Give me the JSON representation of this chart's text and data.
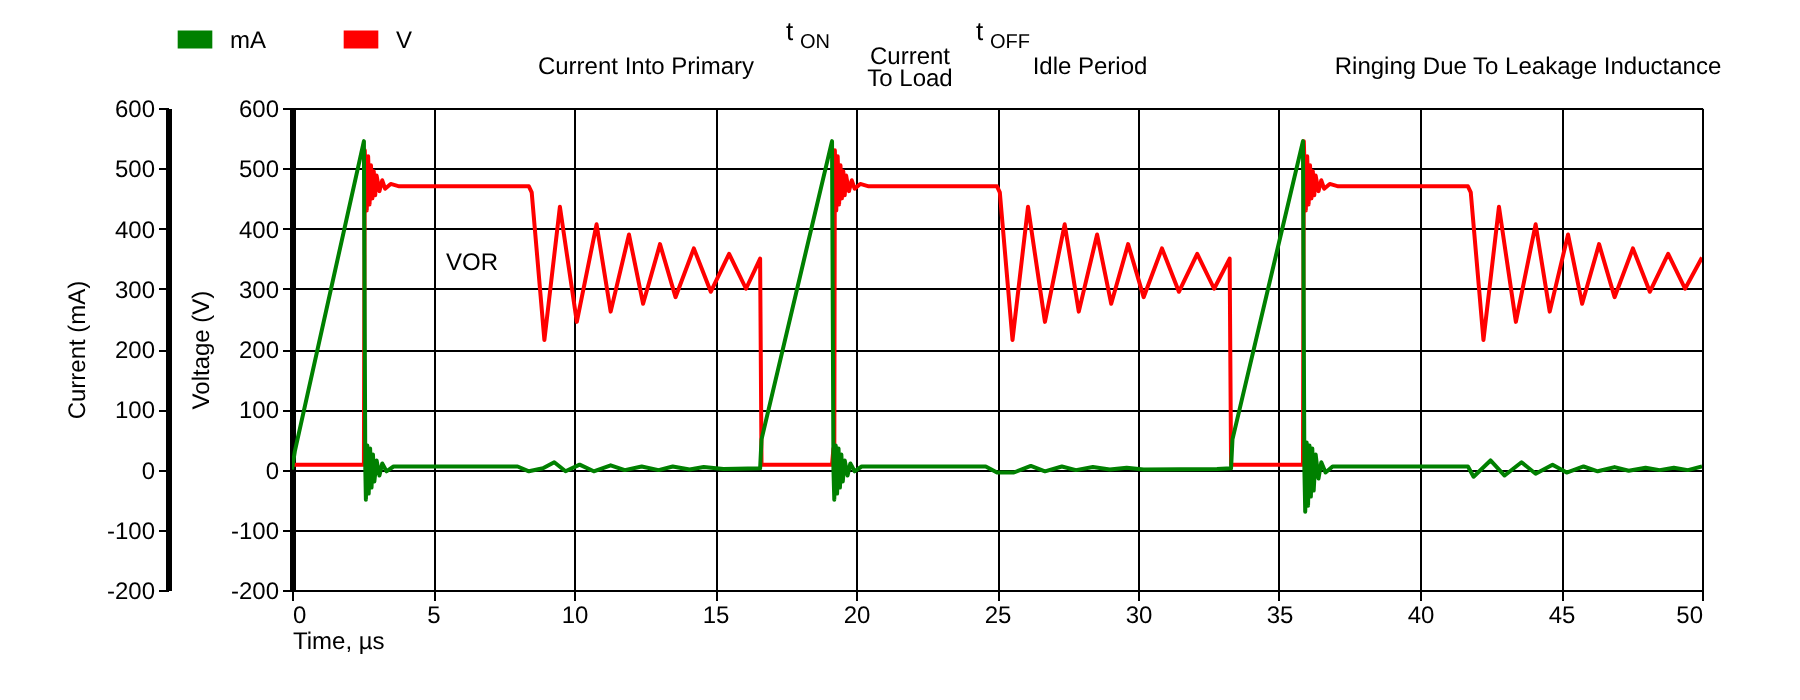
{
  "chart_data": {
    "type": "line",
    "xlabel": "Time, µs",
    "ylabel": "Current (mA)",
    "y2label": "Voltage (V)",
    "xlim": [
      0,
      50
    ],
    "xticks": [
      0,
      5,
      10,
      15,
      20,
      25,
      30,
      35,
      40,
      45,
      50
    ],
    "ylim": [
      -200,
      600
    ],
    "yticks": [
      -200,
      -100,
      0,
      100,
      200,
      300,
      400,
      500,
      600
    ],
    "y2lim": [
      -200,
      600
    ],
    "y2ticks": [
      -200,
      -100,
      0,
      100,
      200,
      300,
      400,
      500,
      600
    ],
    "grid": true,
    "legend": "top left",
    "line_style": "solid",
    "marker": "none",
    "annotations": [
      "Current Into Primary",
      "t$_{ON}$",
      "t$_{OFF}$",
      "Current\nTo Load",
      "Idle Period",
      "Ringing Due To Leakage Inductance",
      "VOR"
    ],
    "series": [
      {
        "name": "mA",
        "color": "#008000",
        "axis": "y",
        "x": [
          0,
          0.1,
          2.55,
          2.6,
          2.62,
          2.67,
          2.72,
          2.77,
          2.82,
          2.87,
          2.92,
          3.0,
          3.1,
          3.2,
          3.35,
          3.6,
          8.0,
          8.4,
          8.9,
          9.3,
          9.7,
          10.2,
          10.7,
          11.3,
          11.8,
          12.4,
          13.0,
          13.5,
          14.1,
          14.6,
          15.3,
          16.6,
          16.65,
          19.15,
          19.2,
          19.23,
          19.28,
          19.33,
          19.38,
          19.43,
          19.48,
          19.53,
          19.6,
          19.7,
          19.8,
          19.95,
          20.2,
          24.6,
          25.0,
          25.6,
          26.2,
          26.7,
          27.3,
          27.8,
          28.4,
          29.0,
          29.6,
          30.2,
          32.8,
          33.3,
          33.35,
          35.85,
          35.9,
          35.93,
          35.98,
          36.03,
          36.08,
          36.13,
          36.18,
          36.23,
          36.3,
          36.4,
          36.5,
          36.65,
          36.9,
          41.7,
          41.9,
          42.5,
          43.0,
          43.6,
          44.1,
          44.7,
          45.2,
          45.8,
          46.3,
          46.9,
          47.4,
          48.0,
          48.5,
          49.0,
          49.5,
          50
        ],
        "values": [
          0,
          30,
          545,
          0,
          -50,
          40,
          -40,
          35,
          -30,
          25,
          -20,
          15,
          -10,
          10,
          -3,
          5,
          5,
          -3,
          2,
          12,
          -3,
          8,
          -3,
          7,
          -1,
          5,
          -1,
          5,
          0,
          4,
          1,
          2,
          50,
          545,
          0,
          -50,
          40,
          -40,
          35,
          -30,
          25,
          -20,
          15,
          -10,
          10,
          -3,
          5,
          5,
          -5,
          -5,
          6,
          -3,
          5,
          -1,
          4,
          0,
          3,
          0,
          1,
          2,
          50,
          545,
          0,
          -70,
          45,
          -60,
          40,
          -45,
          35,
          -35,
          25,
          -15,
          12,
          -5,
          5,
          5,
          -12,
          15,
          -10,
          12,
          -7,
          8,
          -5,
          5,
          -3,
          4,
          -2,
          3,
          -1,
          3,
          -1,
          5
        ]
      },
      {
        "name": "V",
        "color": "#ff0000",
        "axis": "y2",
        "x": [
          0,
          2.55,
          2.58,
          2.65,
          2.7,
          2.75,
          2.8,
          2.85,
          2.9,
          2.95,
          3.0,
          3.1,
          3.2,
          3.3,
          3.5,
          3.8,
          8.4,
          8.5,
          8.95,
          9.5,
          10.1,
          10.8,
          11.3,
          11.95,
          12.45,
          13.05,
          13.6,
          14.25,
          14.85,
          15.5,
          16.1,
          16.6,
          16.65,
          19.15,
          19.2,
          19.23,
          19.25,
          19.3,
          19.35,
          19.4,
          19.45,
          19.5,
          19.55,
          19.6,
          19.65,
          19.75,
          19.85,
          19.95,
          20.15,
          20.45,
          25.0,
          25.1,
          25.55,
          26.1,
          26.7,
          27.4,
          27.9,
          28.55,
          29.05,
          29.65,
          30.2,
          30.85,
          31.45,
          32.1,
          32.7,
          33.25,
          33.3,
          35.85,
          35.88,
          35.95,
          36.0,
          36.05,
          36.1,
          36.15,
          36.2,
          36.25,
          36.3,
          36.4,
          36.5,
          36.6,
          36.8,
          37.1,
          41.7,
          41.8,
          42.25,
          42.8,
          43.4,
          44.1,
          44.6,
          45.25,
          45.75,
          46.35,
          46.9,
          47.55,
          48.15,
          48.8,
          49.4,
          50
        ],
        "values": [
          8,
          8,
          530,
          430,
          520,
          440,
          505,
          450,
          495,
          455,
          488,
          462,
          480,
          466,
          474,
          470,
          470,
          460,
          215,
          436,
          245,
          407,
          262,
          390,
          275,
          374,
          286,
          367,
          295,
          358,
          300,
          350,
          8,
          8,
          35,
          8,
          530,
          430,
          520,
          440,
          505,
          450,
          495,
          455,
          488,
          462,
          480,
          466,
          474,
          470,
          470,
          460,
          215,
          436,
          245,
          407,
          262,
          390,
          275,
          374,
          286,
          367,
          295,
          358,
          300,
          350,
          8,
          8,
          545,
          430,
          520,
          440,
          505,
          450,
          495,
          455,
          488,
          462,
          480,
          466,
          474,
          470,
          470,
          460,
          215,
          436,
          245,
          407,
          262,
          390,
          275,
          374,
          286,
          367,
          295,
          358,
          300,
          352
        ]
      }
    ]
  }
}
